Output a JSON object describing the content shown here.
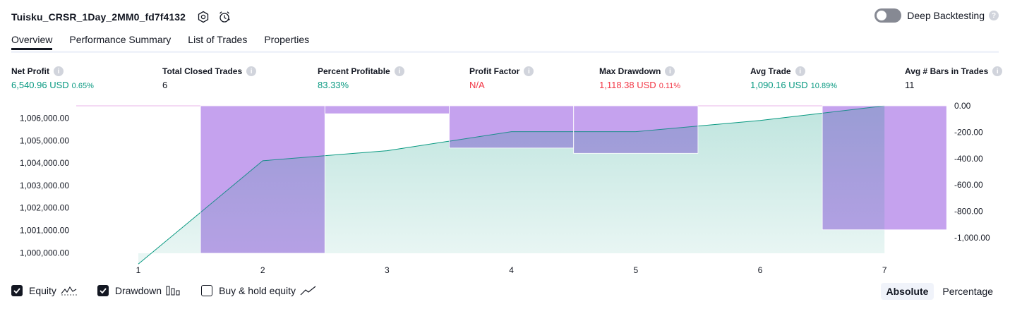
{
  "header": {
    "strategy_name": "Tuisku_CRSR_1Day_2MM0_fd7f4132",
    "deep_backtesting_label": "Deep Backtesting",
    "help_icon_glyph": "?"
  },
  "tabs": [
    {
      "label": "Overview",
      "active": true
    },
    {
      "label": "Performance Summary",
      "active": false
    },
    {
      "label": "List of Trades",
      "active": false
    },
    {
      "label": "Properties",
      "active": false
    }
  ],
  "metrics": {
    "net_profit": {
      "label": "Net Profit",
      "value": "6,540.96 USD",
      "pct": "0.65%",
      "color": "#089981"
    },
    "total_closed_trades": {
      "label": "Total Closed Trades",
      "value": "6"
    },
    "percent_profitable": {
      "label": "Percent Profitable",
      "value": "83.33%",
      "color": "#089981"
    },
    "profit_factor": {
      "label": "Profit Factor",
      "value": "N/A",
      "color": "#f23645"
    },
    "max_drawdown": {
      "label": "Max Drawdown",
      "value": "1,118.38 USD",
      "pct": "0.11%",
      "color": "#f23645"
    },
    "avg_trade": {
      "label": "Avg Trade",
      "value": "1,090.16 USD",
      "pct": "10.89%",
      "color": "#089981"
    },
    "avg_bars": {
      "label": "Avg # Bars in Trades",
      "value": "11"
    }
  },
  "chart_data": {
    "type": "line",
    "x": [
      1,
      2,
      3,
      4,
      5,
      6,
      7
    ],
    "series": [
      {
        "values": [
          999500,
          1004100,
          1004550,
          1005400,
          1005400,
          1005900,
          1006550
        ],
        "color": "#089981"
      },
      {
        "values": [
          null,
          -1118,
          -60,
          -320,
          -360,
          0,
          -940
        ],
        "color": "#ce93d8"
      }
    ],
    "left_axis": {
      "ticks": [
        "1,006,000.00",
        "1,005,000.00",
        "1,004,000.00",
        "1,003,000.00",
        "1,002,000.00",
        "1,001,000.00",
        "1,000,000.00"
      ],
      "range": [
        999980,
        1006550
      ]
    },
    "right_axis": {
      "ticks": [
        "0.00",
        "-200.00",
        "-400.00",
        "-600.00",
        "-800.00",
        "-1,000.00"
      ],
      "range": [
        -1118,
        0
      ]
    },
    "x_ticks": [
      "1",
      "2",
      "3",
      "4",
      "5",
      "6",
      "7"
    ]
  },
  "legend": {
    "equity": {
      "label": "Equity",
      "checked": true
    },
    "drawdown": {
      "label": "Drawdown",
      "checked": true
    },
    "buy_hold": {
      "label": "Buy & hold equity",
      "checked": false
    }
  },
  "modes": [
    {
      "label": "Absolute",
      "active": true
    },
    {
      "label": "Percentage",
      "active": false
    }
  ],
  "colors": {
    "accent": "#131722",
    "green": "#089981",
    "red": "#f23645",
    "drawdown": "#d5b3f8",
    "equity_fill": "#c8ebe1"
  }
}
